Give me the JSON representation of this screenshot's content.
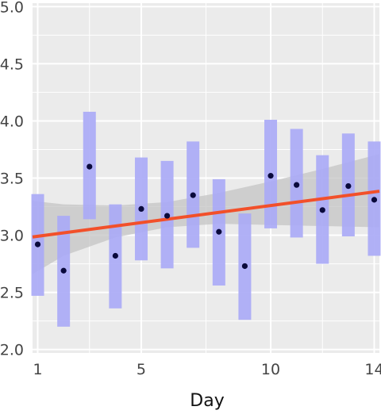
{
  "chart_data": {
    "type": "scatter",
    "xlabel": "Day",
    "ylabel": "",
    "xlim": [
      0.8,
      14.2
    ],
    "ylim": [
      1.97,
      5.03
    ],
    "x_ticks": [
      1,
      5,
      10,
      14
    ],
    "y_ticks": [
      2.0,
      2.5,
      3.0,
      3.5,
      4.0,
      4.5,
      5.0
    ],
    "x_tick_labels": [
      "1",
      "5",
      "10",
      "14"
    ],
    "y_tick_labels": [
      "2.0",
      "2.5",
      "3.0",
      "3.5",
      "4.0",
      "4.5",
      "5.0"
    ],
    "grid": true,
    "points": [
      {
        "x": 1,
        "y": 2.92,
        "low": 2.47,
        "high": 3.36
      },
      {
        "x": 2,
        "y": 2.69,
        "low": 2.2,
        "high": 3.17
      },
      {
        "x": 3,
        "y": 3.6,
        "low": 3.14,
        "high": 4.08
      },
      {
        "x": 4,
        "y": 2.82,
        "low": 2.36,
        "high": 3.27
      },
      {
        "x": 5,
        "y": 3.23,
        "low": 2.78,
        "high": 3.68
      },
      {
        "x": 6,
        "y": 3.17,
        "low": 2.71,
        "high": 3.65
      },
      {
        "x": 7,
        "y": 3.35,
        "low": 2.89,
        "high": 3.82
      },
      {
        "x": 8,
        "y": 3.03,
        "low": 2.56,
        "high": 3.49
      },
      {
        "x": 9,
        "y": 2.73,
        "low": 2.26,
        "high": 3.19
      },
      {
        "x": 10,
        "y": 3.52,
        "low": 3.06,
        "high": 4.01
      },
      {
        "x": 11,
        "y": 3.44,
        "low": 2.98,
        "high": 3.93
      },
      {
        "x": 12,
        "y": 3.22,
        "low": 2.75,
        "high": 3.7
      },
      {
        "x": 13,
        "y": 3.43,
        "low": 2.99,
        "high": 3.89
      },
      {
        "x": 14,
        "y": 3.31,
        "low": 2.82,
        "high": 3.82
      }
    ],
    "trend_line": {
      "x": [
        0.8,
        14.2
      ],
      "y": [
        2.985,
        3.385
      ]
    },
    "confidence_band": {
      "x": [
        0.8,
        2,
        4,
        6,
        8,
        10,
        12,
        14.2
      ],
      "lower": [
        2.66,
        2.82,
        2.98,
        3.07,
        3.1,
        3.09,
        3.08,
        3.07
      ],
      "upper": [
        3.3,
        3.27,
        3.26,
        3.29,
        3.37,
        3.47,
        3.58,
        3.71
      ]
    },
    "colors": {
      "panel_background": "#ebebeb",
      "grid": "#ffffff",
      "error_bar": "#aaaaf6",
      "point": "#0a0a3c",
      "trend_line": "#f2502a",
      "confidence_band": "#c4c4c4"
    }
  }
}
